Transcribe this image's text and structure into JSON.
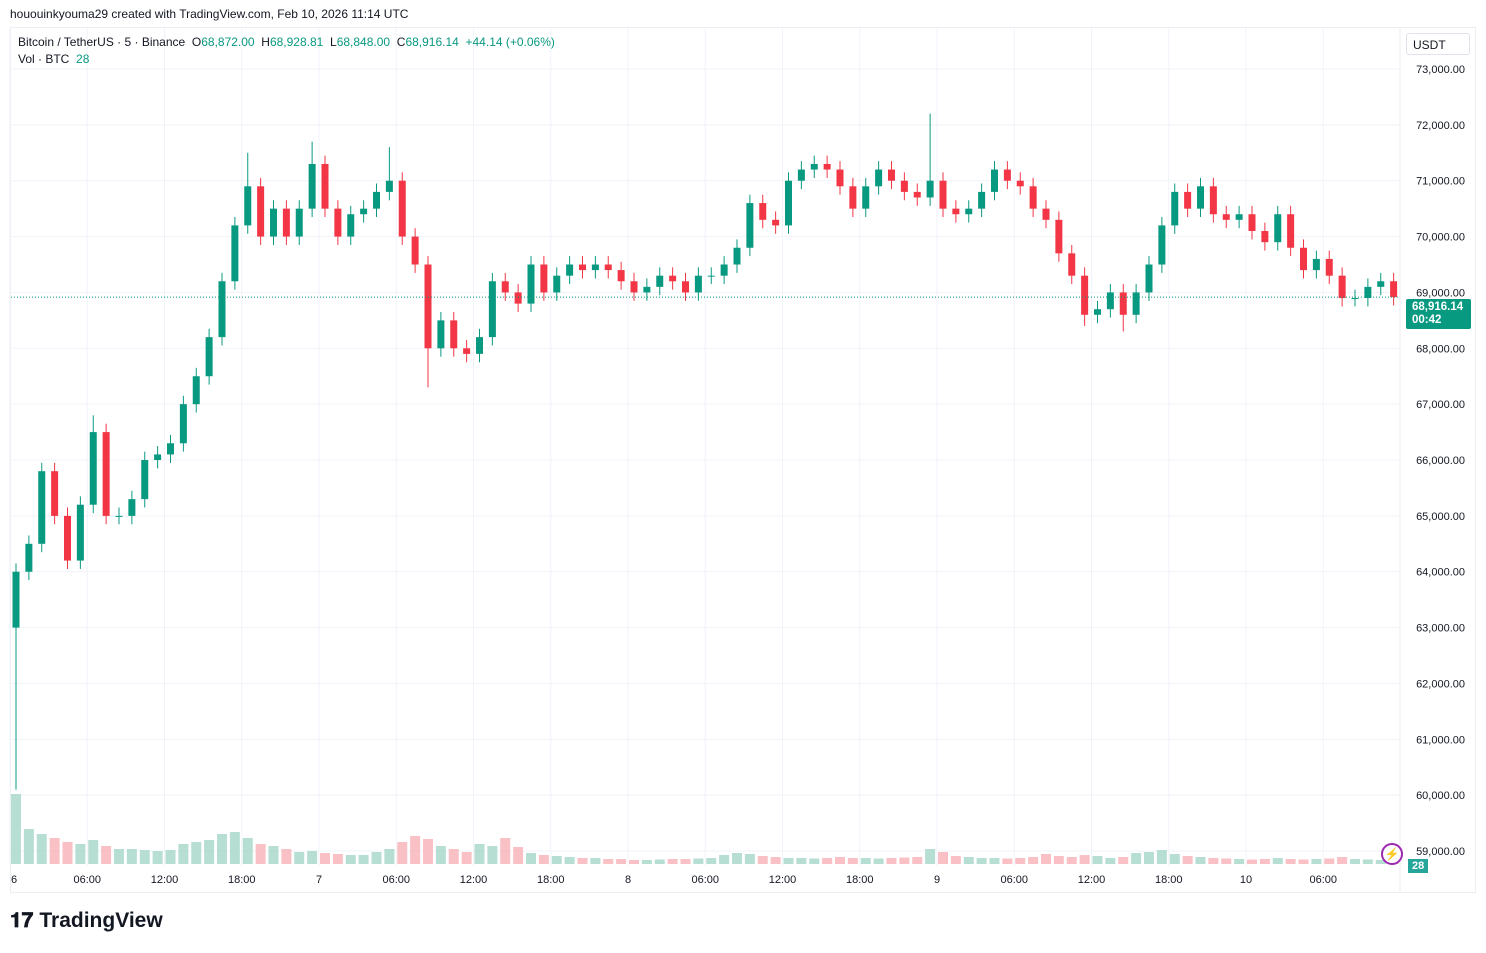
{
  "caption": "hououinkyouma29 created with TradingView.com, Feb 10, 2026 11:14 UTC",
  "legend": {
    "symbol": "Bitcoin / TetherUS · 5 · Binance",
    "o_label": "O",
    "o": "68,872.00",
    "h_label": "H",
    "h": "68,928.81",
    "l_label": "L",
    "l": "68,848.00",
    "c_label": "C",
    "c": "68,916.14",
    "change": "+44.14 (+0.06%)",
    "vol_label": "Vol · BTC",
    "vol": "28"
  },
  "currency": "USDT",
  "last_price": "68,916.14",
  "countdown": "00:42",
  "last_volume": "28",
  "logo": "TradingView",
  "colors": {
    "up": "#089981",
    "down": "#f23645",
    "vol_up": "#a5d6c7",
    "vol_down": "#f7b2b6"
  },
  "chart_data": {
    "type": "candlestick",
    "interval": "5",
    "ylim": [
      58800,
      73200
    ],
    "y_ticks": [
      "73,000.00",
      "72,000.00",
      "71,000.00",
      "70,000.00",
      "69,000.00",
      "68,000.00",
      "67,000.00",
      "66,000.00",
      "65,000.00",
      "64,000.00",
      "63,000.00",
      "62,000.00",
      "61,000.00",
      "60,000.00",
      "59,000.00"
    ],
    "x_ticks": [
      "6",
      "06:00",
      "12:00",
      "18:00",
      "7",
      "06:00",
      "12:00",
      "18:00",
      "8",
      "06:00",
      "12:00",
      "18:00",
      "9",
      "06:00",
      "12:00",
      "18:00",
      "10",
      "06:00"
    ],
    "grid": true,
    "hourly_close": [
      64000,
      64500,
      65800,
      65000,
      64200,
      65200,
      66500,
      65000,
      65000,
      65300,
      66000,
      66100,
      66300,
      67000,
      67500,
      68200,
      69200,
      70200,
      70900,
      70000,
      70500,
      70000,
      70500,
      71300,
      70500,
      70000,
      70400,
      70500,
      70800,
      71000,
      70000,
      69500,
      68000,
      68500,
      68000,
      67900,
      68200,
      69200,
      69000,
      68800,
      69500,
      69000,
      69300,
      69500,
      69400,
      69500,
      69400,
      69200,
      69000,
      69100,
      69300,
      69200,
      69000,
      69300,
      69300,
      69500,
      69800,
      70600,
      70300,
      70200,
      71000,
      71200,
      71300,
      71200,
      70900,
      70500,
      70900,
      71200,
      71000,
      70800,
      70700,
      71000,
      70500,
      70400,
      70500,
      70800,
      71200,
      71000,
      70900,
      70500,
      70300,
      69700,
      69300,
      68600,
      68700,
      69000,
      68600,
      69000,
      69500,
      70200,
      70800,
      70500,
      70900,
      70400,
      70300,
      70400,
      70100,
      69900,
      70400,
      69800,
      69400,
      69600,
      69300,
      68900,
      68900,
      69100,
      69200,
      68916.14
    ],
    "first_open": 63000,
    "extremes": [
      {
        "hour": 0,
        "low": 60100
      },
      {
        "hour": 6,
        "high": 66800
      },
      {
        "hour": 18,
        "high": 71500
      },
      {
        "hour": 23,
        "high": 71700
      },
      {
        "hour": 29,
        "high": 71600
      },
      {
        "hour": 32,
        "low": 67300
      },
      {
        "hour": 71,
        "high": 72200
      },
      {
        "hour": 83,
        "low": 68400
      },
      {
        "hour": 86,
        "low": 68300
      }
    ],
    "hourly_volume": [
      700,
      350,
      300,
      260,
      220,
      200,
      240,
      180,
      150,
      150,
      140,
      130,
      140,
      200,
      220,
      240,
      300,
      320,
      260,
      200,
      180,
      150,
      120,
      130,
      110,
      100,
      90,
      90,
      120,
      150,
      220,
      280,
      250,
      180,
      150,
      120,
      200,
      180,
      260,
      170,
      110,
      90,
      80,
      70,
      60,
      60,
      50,
      50,
      40,
      40,
      45,
      50,
      50,
      55,
      60,
      90,
      110,
      100,
      80,
      70,
      60,
      60,
      55,
      60,
      70,
      60,
      60,
      55,
      60,
      65,
      70,
      150,
      120,
      80,
      70,
      60,
      60,
      55,
      60,
      70,
      100,
      80,
      70,
      90,
      80,
      60,
      70,
      110,
      120,
      140,
      100,
      80,
      70,
      60,
      55,
      50,
      45,
      50,
      60,
      50,
      45,
      50,
      55,
      70,
      50,
      45,
      40,
      28
    ]
  }
}
